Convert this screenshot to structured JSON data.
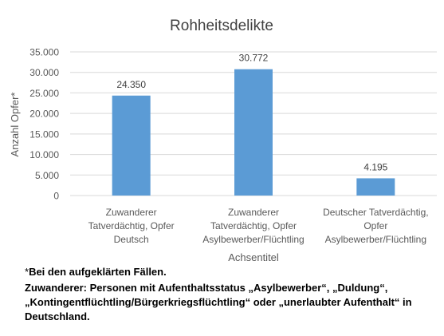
{
  "chart_data": {
    "type": "bar",
    "title": "Rohheitsdelikte",
    "xlabel": "Achsentitel",
    "ylabel": "Anzahl Opfer*",
    "categories": [
      [
        "Zuwanderer",
        "Tatverdächtig, Opfer",
        "Deutsch"
      ],
      [
        "Zuwanderer",
        "Tatverdächtig, Opfer",
        "Asylbewerber/Flüchtling"
      ],
      [
        "Deutscher Tatverdächtig,",
        "Opfer",
        "Asylbewerber/Flüchtling"
      ]
    ],
    "values": [
      24350,
      30772,
      4195
    ],
    "value_labels": [
      "24.350",
      "30.772",
      "4.195"
    ],
    "ylim": [
      0,
      35000
    ],
    "yticks": [
      0,
      5000,
      10000,
      15000,
      20000,
      25000,
      30000,
      35000
    ],
    "ytick_labels": [
      "0",
      "5.000",
      "10.000",
      "15.000",
      "20.000",
      "25.000",
      "30.000",
      "35.000"
    ],
    "grid": true,
    "legend": "none",
    "bar_color": "#5B9BD5",
    "grid_color": "#D9D9D9"
  },
  "footnotes": {
    "star": "*",
    "note1": "Bei den aufgeklärten Fällen.",
    "note2": "Zuwanderer: Personen mit Aufenthaltsstatus  „Asylbewerber“,   „Duldung“, „Kontingentflüchtling/Bürgerkriegsflüchtling“ oder „unerlaubter Aufenthalt“ in Deutschland."
  }
}
